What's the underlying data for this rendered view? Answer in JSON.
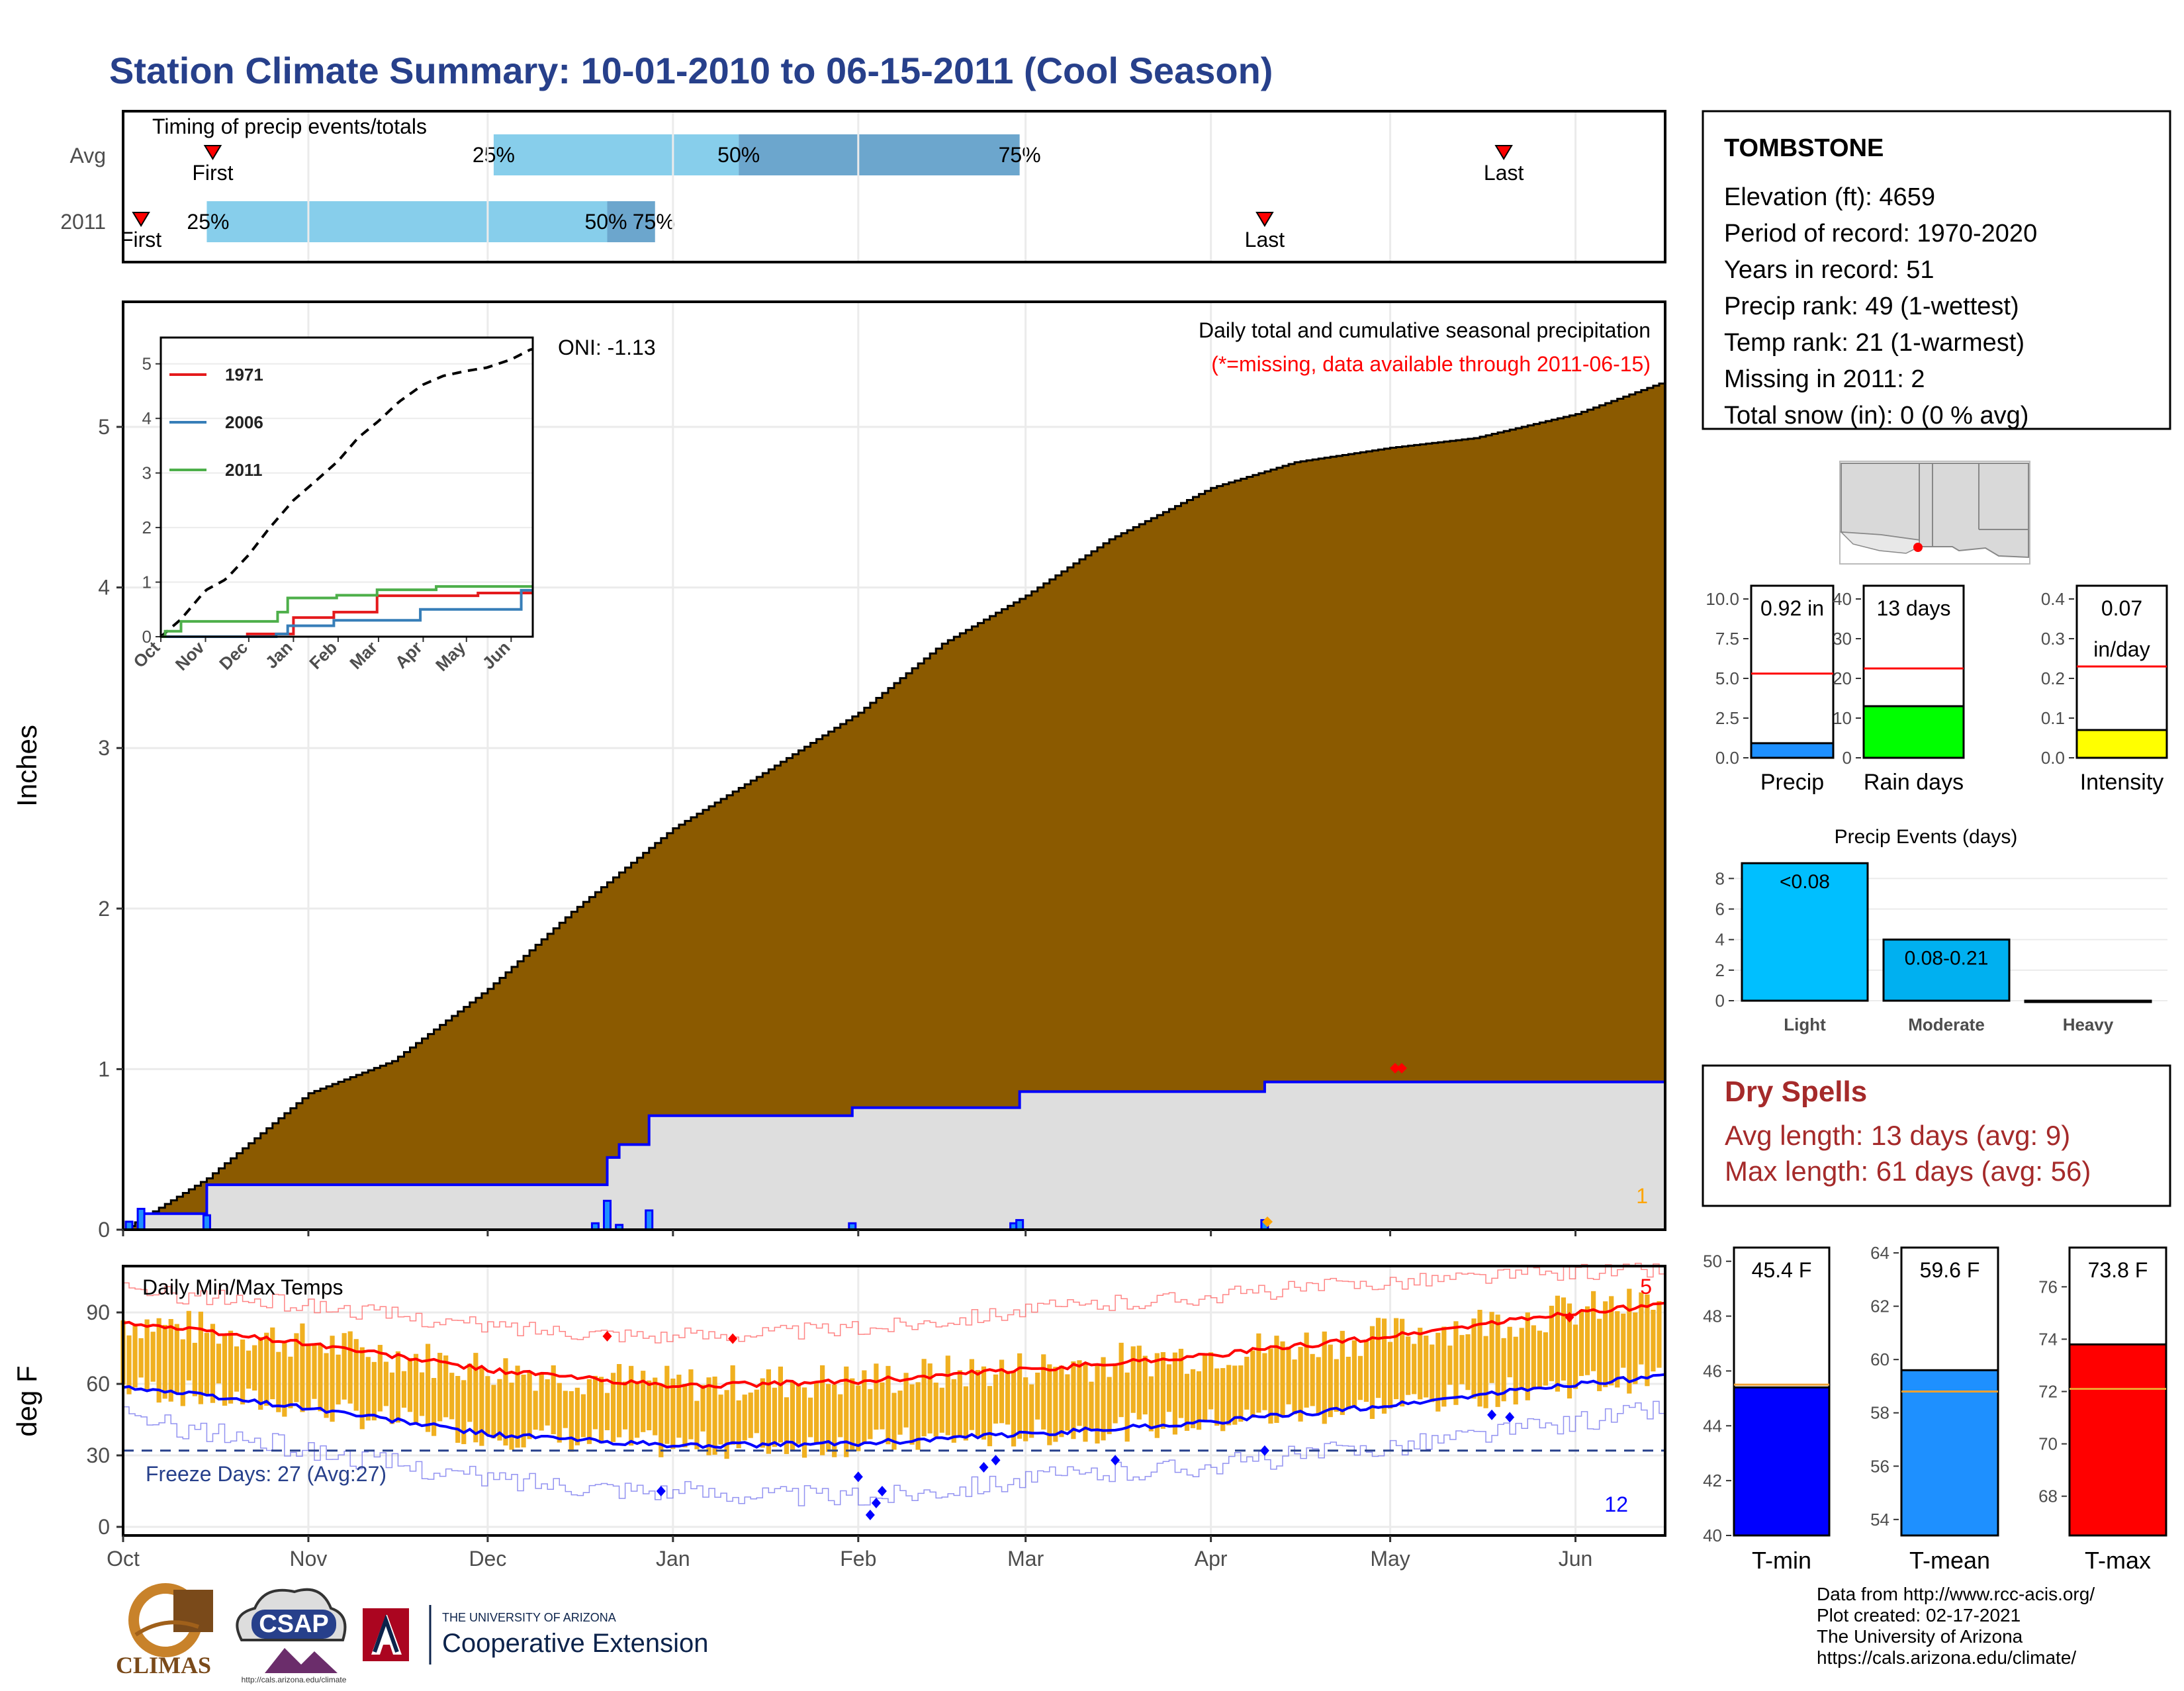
{
  "title": "Station Climate Summary: 10-01-2010 to 06-15-2011 (Cool Season)",
  "colors": {
    "title": "#27408b",
    "bg_precip": "#8b5a00",
    "season_fill": "#dedede",
    "avg_line": "#ff0000",
    "tmin_line": "#0000ff",
    "bar_orange": "#f0b020",
    "dry_spells": "#a52a2a"
  },
  "timing": {
    "label": "Timing of precip events/totals",
    "rows": [
      {
        "label": "Avg",
        "first_label": "First",
        "last_label": "Last",
        "first_date": "2010-10-16",
        "last_date": "2011-05-20",
        "q25_label": "25%",
        "q50_label": "50%",
        "q75_label": "75%",
        "q25_date": "2010-12-02",
        "q50_date": "2011-01-12",
        "q75_date": "2011-02-28"
      },
      {
        "label": "2011",
        "first_label": "First",
        "last_label": "Last",
        "first_date": "2010-10-04",
        "last_date": "2011-04-10",
        "q25_label": "25%",
        "q50_label": "50%",
        "q75_label": "75%",
        "q25_date": "2010-10-15",
        "q50_date": "2010-12-21",
        "q75_date": "2010-12-29"
      }
    ]
  },
  "months": [
    "Oct",
    "Nov",
    "Dec",
    "Jan",
    "Feb",
    "Mar",
    "Apr",
    "May",
    "Jun"
  ],
  "main": {
    "ylabel": "Inches",
    "yticks": [
      "0",
      "1",
      "2",
      "3",
      "4",
      "5"
    ],
    "title_line1": "Daily total and cumulative seasonal precipitation",
    "title_line2": "(*=missing, data available through 2011-06-15)",
    "oni": "ONI: -1.13",
    "missing_count": "1"
  },
  "inset": {
    "yticks": [
      "0",
      "1",
      "2",
      "3",
      "4",
      "5"
    ],
    "legend": [
      {
        "name": "1971",
        "color": "#e41a1c"
      },
      {
        "name": "2006",
        "color": "#377eb8"
      },
      {
        "name": "2011",
        "color": "#4daf4a"
      }
    ]
  },
  "temps": {
    "label": "Daily Min/Max Temps",
    "ylabel": "deg F",
    "yticks": [
      "0",
      "30",
      "60",
      "90"
    ],
    "freeze_label": "Freeze Days: 27 (Avg:27)",
    "max_count": "5",
    "min_count": "12"
  },
  "station": {
    "name": "TOMBSTONE",
    "lines": [
      "Elevation (ft): 4659",
      "Period of record: 1970-2020",
      "Years in record: 51",
      "Precip rank: 49 (1-wettest)",
      "Temp rank: 21 (1-warmest)",
      "Missing in 2011: 2",
      "Total snow (in): 0 (0 % avg)"
    ]
  },
  "mini_bars": [
    {
      "label": "Precip",
      "value_label": "0.92 in",
      "value": 0.92,
      "avg": 5.3,
      "ymax": 10,
      "yticks": [
        "0.0",
        "2.5",
        "5.0",
        "7.5",
        "10.0"
      ],
      "color": "#1e90ff"
    },
    {
      "label": "Rain days",
      "value_label": "13 days",
      "value": 13,
      "avg": 22.5,
      "ymax": 40,
      "yticks": [
        "0",
        "10",
        "20",
        "30",
        "40"
      ],
      "color": "#00ff00"
    },
    {
      "label": "Intensity",
      "value_label": "0.07",
      "value_label2": "in/day",
      "value": 0.07,
      "avg": 0.23,
      "ymax": 0.4,
      "yticks": [
        "0.0",
        "0.1",
        "0.2",
        "0.3",
        "0.4"
      ],
      "color": "#ffff00"
    }
  ],
  "events": {
    "title": "Precip Events (days)",
    "yticks": [
      "0",
      "2",
      "4",
      "6",
      "8"
    ],
    "bars": [
      {
        "label": "Light",
        "value_label": "<0.08",
        "value": 9,
        "color": "#00bfff"
      },
      {
        "label": "Moderate",
        "value_label": "0.08-0.21",
        "value": 4,
        "color": "#00b0f0"
      },
      {
        "label": "Heavy",
        "value_label": "",
        "value": 0,
        "color": "#0080c0"
      }
    ]
  },
  "dry_spells": {
    "title": "Dry Spells",
    "avg": "Avg length: 13 days (avg: 9)",
    "max": "Max length: 61 days (avg: 56)"
  },
  "temp_bars": [
    {
      "label": "T-min",
      "value_label": "45.4 F",
      "value": 45.4,
      "avg": 45.5,
      "ymin": 40,
      "ymax": 50.5,
      "yticks": [
        "40",
        "42",
        "44",
        "46",
        "48",
        "50"
      ],
      "color": "#0000ff"
    },
    {
      "label": "T-mean",
      "value_label": "59.6 F",
      "value": 59.6,
      "avg": 58.8,
      "ymin": 53.4,
      "ymax": 64.2,
      "yticks": [
        "54",
        "56",
        "58",
        "60",
        "62",
        "64"
      ],
      "color": "#1e90ff"
    },
    {
      "label": "T-max",
      "value_label": "73.8 F",
      "value": 73.8,
      "avg": 72.1,
      "ymin": 66.5,
      "ymax": 77.5,
      "yticks": [
        "68",
        "70",
        "72",
        "74",
        "76"
      ],
      "color": "#ff0000"
    }
  ],
  "footer": {
    "lines": [
      "Data from http://www.rcc-acis.org/",
      "Plot created: 02-17-2021",
      "The University of Arizona",
      "https://cals.arizona.edu/climate/"
    ],
    "climas": "CLIMAS",
    "csap": "CSAP",
    "csap_url": "http://cals.arizona.edu/climate",
    "ua_small": "THE UNIVERSITY OF ARIZONA",
    "ua_big": "Cooperative Extension"
  },
  "chart_data": [
    {
      "type": "area",
      "title": "Daily total and cumulative seasonal precipitation",
      "ylabel": "Inches",
      "ylim": [
        0,
        5.75
      ],
      "series": [
        {
          "name": "Avg cumulative",
          "x": [
            "2010-10-01",
            "2010-10-15",
            "2010-11-01",
            "2010-11-15",
            "2010-12-01",
            "2010-12-15",
            "2011-01-01",
            "2011-01-15",
            "2011-02-01",
            "2011-02-15",
            "2011-03-01",
            "2011-03-15",
            "2011-04-01",
            "2011-04-15",
            "2011-05-01",
            "2011-05-15",
            "2011-06-01",
            "2011-06-15"
          ],
          "y": [
            0,
            0.32,
            0.85,
            1.05,
            1.5,
            1.98,
            2.5,
            2.82,
            3.22,
            3.65,
            3.95,
            4.3,
            4.62,
            4.78,
            4.87,
            4.93,
            5.08,
            5.27
          ]
        },
        {
          "name": "2011 cumulative",
          "x": [
            "2010-10-01",
            "2010-10-04",
            "2010-10-15",
            "2010-12-21",
            "2010-12-23",
            "2010-12-28",
            "2011-01-31",
            "2011-02-28",
            "2011-04-10",
            "2011-06-15"
          ],
          "y": [
            0,
            0.1,
            0.28,
            0.45,
            0.53,
            0.71,
            0.76,
            0.86,
            0.92,
            0.92
          ]
        },
        {
          "name": "2011 daily",
          "x": [
            "2010-10-02",
            "2010-10-04",
            "2010-10-15",
            "2010-12-19",
            "2010-12-21",
            "2010-12-23",
            "2010-12-28",
            "2011-01-31",
            "2011-02-27",
            "2011-02-28",
            "2011-04-10"
          ],
          "y": [
            0.05,
            0.13,
            0.09,
            0.04,
            0.18,
            0.03,
            0.12,
            0.04,
            0.04,
            0.06,
            0.06
          ]
        }
      ]
    },
    {
      "type": "line",
      "title": "Daily Min/Max Temps",
      "ylabel": "deg F",
      "ylim": [
        -3,
        110
      ],
      "series": [
        {
          "name": "Avg Tmax",
          "x": [
            "2010-10-01",
            "2010-11-01",
            "2010-12-01",
            "2011-01-01",
            "2011-02-01",
            "2011-03-01",
            "2011-04-01",
            "2011-05-01",
            "2011-06-01",
            "2011-06-15"
          ],
          "y": [
            86,
            77,
            66,
            59,
            61,
            66,
            72,
            80,
            90,
            93
          ]
        },
        {
          "name": "Avg Tmin",
          "x": [
            "2010-10-01",
            "2010-11-01",
            "2010-12-01",
            "2011-01-01",
            "2011-02-01",
            "2011-03-01",
            "2011-04-01",
            "2011-05-01",
            "2011-06-01",
            "2011-06-15"
          ],
          "y": [
            59,
            50,
            39,
            34,
            35,
            39,
            44,
            51,
            60,
            63
          ]
        },
        {
          "name": "Record max",
          "x": [
            "2010-10-01",
            "2010-11-01",
            "2010-12-01",
            "2011-01-01",
            "2011-02-01",
            "2011-03-01",
            "2011-04-01",
            "2011-05-01",
            "2011-06-01",
            "2011-06-15"
          ],
          "y": [
            99,
            93,
            84,
            80,
            83,
            91,
            97,
            103,
            107,
            108
          ]
        },
        {
          "name": "Record min",
          "x": [
            "2010-10-01",
            "2010-11-01",
            "2010-12-01",
            "2011-01-01",
            "2011-02-01",
            "2011-03-01",
            "2011-04-01",
            "2011-05-01",
            "2011-06-01",
            "2011-06-15"
          ],
          "y": [
            46,
            32,
            20,
            15,
            12,
            20,
            26,
            34,
            44,
            50
          ]
        },
        {
          "name": "Freeze line",
          "x": [
            "2010-10-01",
            "2011-06-15"
          ],
          "y": [
            32,
            32
          ]
        }
      ]
    }
  ]
}
